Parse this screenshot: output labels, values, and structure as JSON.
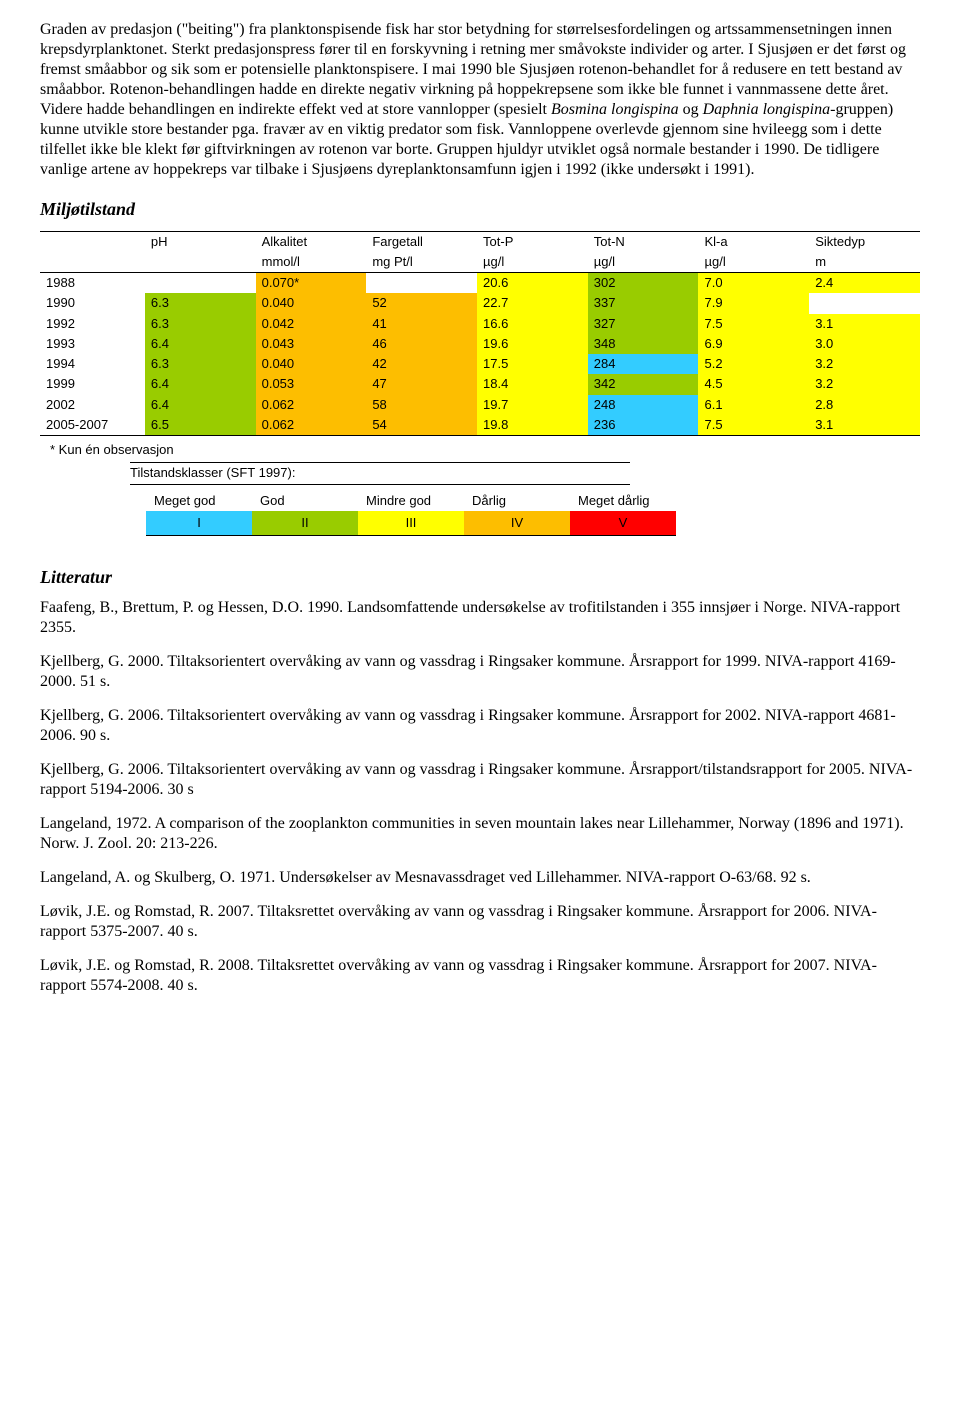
{
  "paragraphs": {
    "p1": "Graden av predasjon (\"beiting\") fra planktonspisende fisk har stor betydning for størrelsesfordelingen og artssammensetningen innen krepsdyrplanktonet. Sterkt predasjonspress fører til en forskyvning i retning mer småvokste individer og arter. I Sjusjøen er det først og fremst småabbor og sik som er potensielle planktonspisere. I mai 1990 ble Sjusjøen rotenon-behandlet for å redusere en tett bestand av småabbor. Rotenon-behandlingen hadde en direkte negativ virkning på hoppekrepsene som ikke ble funnet i vannmassene dette året. Videre hadde behandlingen en indirekte effekt ved at store vannlopper (spesielt Bosmina longispina og Daphnia longispina-gruppen) kunne utvikle store bestander pga. fravær av en viktig predator som fisk. Vannloppene overlevde gjennom sine hvileegg som i dette tilfellet ikke ble klekt før giftvirkningen av rotenon var borte. Gruppen hjuldyr utviklet også normale bestander i 1990. De tidligere vanlige artene av hoppekreps var tilbake i Sjusjøens dyreplanktonsamfunn igjen i 1992 (ikke undersøkt i 1991)."
  },
  "headings": {
    "miljo": "Miljøtilstand",
    "litteratur": "Litteratur"
  },
  "table": {
    "columns": [
      "",
      "pH",
      "Alkalitet",
      "Fargetall",
      "Tot-P",
      "Tot-N",
      "Kl-a",
      "Siktedyp"
    ],
    "units": [
      "",
      "",
      "mmol/l",
      "mg Pt/l",
      "µg/l",
      "µg/l",
      "µg/l",
      "m"
    ],
    "rows": [
      {
        "year": "1988",
        "cells": [
          "",
          "0.070*",
          "",
          "20.6",
          "302",
          "7.0",
          "2.4"
        ],
        "colors": [
          "",
          "#fdbe00",
          "",
          "#ffff00",
          "#99cc00",
          "#ffff00",
          "#ffff00"
        ]
      },
      {
        "year": "1990",
        "cells": [
          "6.3",
          "0.040",
          "52",
          "22.7",
          "337",
          "7.9",
          ""
        ],
        "colors": [
          "#99cc00",
          "#fdbe00",
          "#fdbe00",
          "#ffff00",
          "#99cc00",
          "#ffff00",
          ""
        ]
      },
      {
        "year": "1992",
        "cells": [
          "6.3",
          "0.042",
          "41",
          "16.6",
          "327",
          "7.5",
          "3.1"
        ],
        "colors": [
          "#99cc00",
          "#fdbe00",
          "#fdbe00",
          "#ffff00",
          "#99cc00",
          "#ffff00",
          "#ffff00"
        ]
      },
      {
        "year": "1993",
        "cells": [
          "6.4",
          "0.043",
          "46",
          "19.6",
          "348",
          "6.9",
          "3.0"
        ],
        "colors": [
          "#99cc00",
          "#fdbe00",
          "#fdbe00",
          "#ffff00",
          "#99cc00",
          "#ffff00",
          "#ffff00"
        ]
      },
      {
        "year": "1994",
        "cells": [
          "6.3",
          "0.040",
          "42",
          "17.5",
          "284",
          "5.2",
          "3.2"
        ],
        "colors": [
          "#99cc00",
          "#fdbe00",
          "#fdbe00",
          "#ffff00",
          "#33ccff",
          "#ffff00",
          "#ffff00"
        ]
      },
      {
        "year": "1999",
        "cells": [
          "6.4",
          "0.053",
          "47",
          "18.4",
          "342",
          "4.5",
          "3.2"
        ],
        "colors": [
          "#99cc00",
          "#fdbe00",
          "#fdbe00",
          "#ffff00",
          "#99cc00",
          "#ffff00",
          "#ffff00"
        ]
      },
      {
        "year": "2002",
        "cells": [
          "6.4",
          "0.062",
          "58",
          "19.7",
          "248",
          "6.1",
          "2.8"
        ],
        "colors": [
          "#99cc00",
          "#fdbe00",
          "#fdbe00",
          "#ffff00",
          "#33ccff",
          "#ffff00",
          "#ffff00"
        ]
      },
      {
        "year": "2005-2007",
        "cells": [
          "6.5",
          "0.062",
          "54",
          "19.8",
          "236",
          "7.5",
          "3.1"
        ],
        "colors": [
          "#99cc00",
          "#fdbe00",
          "#fdbe00",
          "#ffff00",
          "#33ccff",
          "#ffff00",
          "#ffff00"
        ]
      }
    ],
    "note": "* Kun én observasjon"
  },
  "legend": {
    "title": "Tilstandsklasser (SFT 1997):",
    "labels": [
      "Meget god",
      "God",
      "Mindre god",
      "Dårlig",
      "Meget dårlig"
    ],
    "roman": [
      "I",
      "II",
      "III",
      "IV",
      "V"
    ],
    "colors": [
      "#33ccff",
      "#99cc00",
      "#ffff00",
      "#fdbe00",
      "#ff0000"
    ]
  },
  "refs": {
    "r1": "Faafeng, B., Brettum, P. og Hessen, D.O. 1990. Landsomfattende undersøkelse av trofitilstanden i 355 innsjøer i Norge. NIVA-rapport 2355.",
    "r2": "Kjellberg, G. 2000. Tiltaksorientert overvåking av vann og vassdrag i Ringsaker kommune. Årsrapport for 1999. NIVA-rapport 4169-2000. 51 s.",
    "r3": "Kjellberg, G. 2006. Tiltaksorientert overvåking av vann og vassdrag i Ringsaker kommune. Årsrapport for 2002. NIVA-rapport 4681-2006. 90 s.",
    "r4": "Kjellberg, G. 2006. Tiltaksorientert overvåking av vann og vassdrag i Ringsaker kommune. Årsrapport/tilstandsrapport for 2005. NIVA-rapport 5194-2006. 30 s",
    "r5": "Langeland, 1972. A comparison of the zooplankton communities in seven mountain lakes near Lillehammer, Norway (1896 and 1971). Norw. J. Zool. 20: 213-226.",
    "r6": "Langeland, A. og Skulberg, O. 1971. Undersøkelser av Mesnavassdraget ved Lillehammer. NIVA-rapport O-63/68. 92 s.",
    "r7": "Løvik, J.E. og Romstad, R. 2007. Tiltaksrettet overvåking av vann og vassdrag i Ringsaker kommune. Årsrapport for 2006. NIVA-rapport 5375-2007. 40 s.",
    "r8": "Løvik, J.E. og Romstad, R. 2008. Tiltaksrettet overvåking av vann og vassdrag i Ringsaker kommune. Årsrapport for 2007. NIVA-rapport 5574-2008. 40 s."
  }
}
